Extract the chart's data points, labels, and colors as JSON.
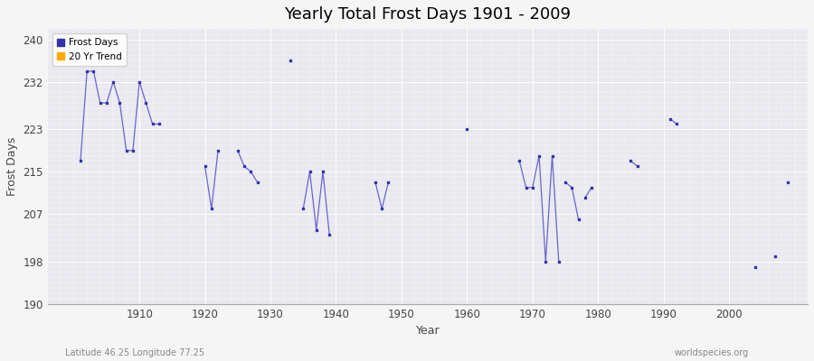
{
  "title": "Yearly Total Frost Days 1901 - 2009",
  "xlabel": "Year",
  "ylabel": "Frost Days",
  "bottom_left_label": "Latitude 46.25 Longitude 77.25",
  "bottom_right_label": "worldspecies.org",
  "xlim": [
    1896,
    2012
  ],
  "ylim": [
    190,
    242
  ],
  "yticks": [
    190,
    198,
    207,
    215,
    223,
    232,
    240
  ],
  "xticks": [
    1910,
    1920,
    1930,
    1940,
    1950,
    1960,
    1970,
    1980,
    1990,
    2000
  ],
  "line_color": "#6666cc",
  "marker_color": "#3333aa",
  "legend_entries": [
    "Frost Days",
    "20 Yr Trend"
  ],
  "legend_colors": [
    "#3333aa",
    "#ffaa00"
  ],
  "fig_bg": "#f5f5f5",
  "ax_bg": "#e8e8ee",
  "connected_groups": [
    [
      [
        1901,
        217
      ],
      [
        1902,
        234
      ],
      [
        1903,
        234
      ],
      [
        1904,
        228
      ],
      [
        1905,
        228
      ],
      [
        1906,
        232
      ],
      [
        1907,
        228
      ],
      [
        1908,
        219
      ],
      [
        1909,
        219
      ],
      [
        1910,
        232
      ],
      [
        1911,
        228
      ],
      [
        1912,
        224
      ],
      [
        1913,
        224
      ]
    ],
    [
      [
        1920,
        216
      ],
      [
        1921,
        208
      ],
      [
        1922,
        219
      ]
    ],
    [
      [
        1925,
        219
      ],
      [
        1926,
        216
      ],
      [
        1927,
        215
      ],
      [
        1928,
        213
      ]
    ],
    [
      [
        1935,
        208
      ],
      [
        1936,
        215
      ],
      [
        1937,
        204
      ],
      [
        1938,
        215
      ],
      [
        1939,
        203
      ]
    ],
    [
      [
        1946,
        213
      ],
      [
        1947,
        208
      ],
      [
        1948,
        213
      ]
    ],
    [
      [
        1968,
        217
      ],
      [
        1969,
        212
      ],
      [
        1970,
        212
      ],
      [
        1971,
        218
      ],
      [
        1972,
        198
      ],
      [
        1973,
        218
      ],
      [
        1974,
        198
      ]
    ],
    [
      [
        1975,
        213
      ],
      [
        1976,
        212
      ],
      [
        1977,
        206
      ]
    ],
    [
      [
        1978,
        210
      ],
      [
        1979,
        212
      ]
    ],
    [
      [
        1985,
        217
      ],
      [
        1986,
        216
      ]
    ],
    [
      [
        1991,
        225
      ],
      [
        1992,
        224
      ]
    ]
  ],
  "isolated_points": [
    [
      1933,
      236
    ],
    [
      1960,
      223
    ],
    [
      2004,
      197
    ],
    [
      2007,
      199
    ],
    [
      2009,
      213
    ]
  ]
}
